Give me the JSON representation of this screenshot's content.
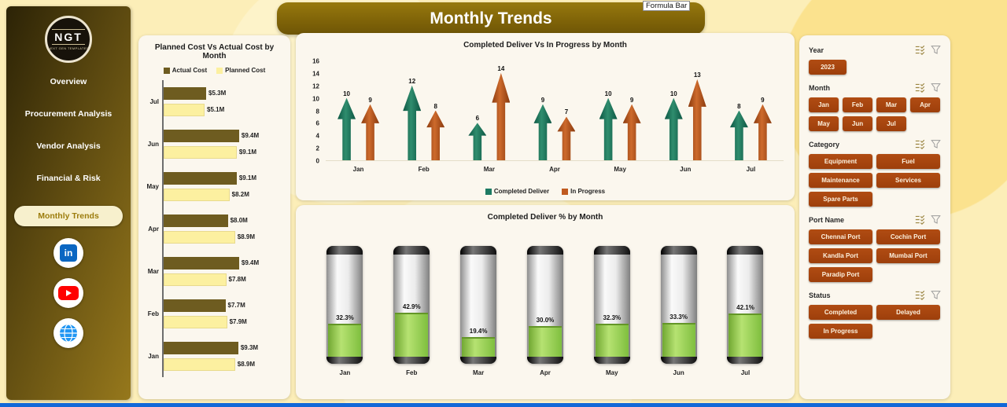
{
  "page": {
    "title": "Monthly Trends",
    "tooltip": "Formula Bar"
  },
  "colors": {
    "accent_rust": "#a8450f",
    "sidebar_dark": "#2c2306",
    "sidebar_gold": "#96781c",
    "banner_gold": "#806408",
    "actual_bar": "#6e5c20",
    "planned_bar": "#fcf0a0",
    "green_arrow": "#1d7a63",
    "orange_arrow": "#c05a1f",
    "gauge_fill": "#8cc63f",
    "bottom_strip": "#1168d8",
    "card_bg": "#fbf7ee"
  },
  "sidebar": {
    "logo": {
      "text": "NGT",
      "subtext": "NEXT GEN TEMPLATES"
    },
    "items": [
      {
        "label": "Overview",
        "active": false
      },
      {
        "label": "Procurement Analysis",
        "active": false
      },
      {
        "label": "Vendor Analysis",
        "active": false
      },
      {
        "label": "Financial & Risk",
        "active": false
      },
      {
        "label": "Monthly Trends",
        "active": true
      }
    ],
    "social": [
      {
        "name": "linkedin-icon"
      },
      {
        "name": "youtube-icon"
      },
      {
        "name": "globe-icon"
      }
    ]
  },
  "chart_data": [
    {
      "type": "bar",
      "orientation": "horizontal",
      "title": "Planned Cost Vs Actual Cost by Month",
      "categories": [
        "Jul",
        "Jun",
        "May",
        "Apr",
        "Mar",
        "Feb",
        "Jan"
      ],
      "series": [
        {
          "name": "Actual Cost",
          "color": "#6e5c20",
          "values": [
            5.3,
            9.4,
            9.1,
            8.0,
            9.4,
            7.7,
            9.3
          ],
          "labels": [
            "$5.3M",
            "$9.4M",
            "$9.1M",
            "$8.0M",
            "$9.4M",
            "$7.7M",
            "$9.3M"
          ]
        },
        {
          "name": "Planned Cost",
          "color": "#fcf0a0",
          "values": [
            5.1,
            9.1,
            8.2,
            8.9,
            7.8,
            7.9,
            8.9
          ],
          "labels": [
            "$5.1M",
            "$9.1M",
            "$8.2M",
            "$8.9M",
            "$7.8M",
            "$7.9M",
            "$8.9M"
          ]
        }
      ],
      "legend_position": "top"
    },
    {
      "type": "bar",
      "style": "arrow",
      "title": "Completed Deliver Vs In Progress by Month",
      "categories": [
        "Jan",
        "Feb",
        "Mar",
        "Apr",
        "May",
        "Jun",
        "Jul"
      ],
      "series": [
        {
          "name": "Completed Deliver",
          "color": "#1d7a63",
          "values": [
            10,
            12,
            6,
            9,
            10,
            10,
            8
          ]
        },
        {
          "name": "In Progress",
          "color": "#c05a1f",
          "values": [
            9,
            8,
            14,
            7,
            9,
            13,
            9
          ]
        }
      ],
      "ylim": [
        0,
        16
      ],
      "yticks": [
        0,
        2,
        4,
        6,
        8,
        10,
        12,
        14,
        16
      ],
      "legend_position": "bottom"
    },
    {
      "type": "bar",
      "style": "battery-gauge",
      "title": "Completed Deliver % by Month",
      "categories": [
        "Jan",
        "Feb",
        "Mar",
        "Apr",
        "May",
        "Jun",
        "Jul"
      ],
      "values": [
        32.3,
        42.9,
        19.4,
        30.0,
        32.3,
        33.3,
        42.1
      ],
      "labels": [
        "32.3%",
        "42.9%",
        "19.4%",
        "30.0%",
        "32.3%",
        "33.3%",
        "42.1%"
      ],
      "ylim": [
        0,
        100
      ]
    }
  ],
  "filters": {
    "groups": [
      {
        "key": "year",
        "label": "Year",
        "options": [
          "2023"
        ]
      },
      {
        "key": "month",
        "label": "Month",
        "options": [
          "Jan",
          "Feb",
          "Mar",
          "Apr",
          "May",
          "Jun",
          "Jul"
        ]
      },
      {
        "key": "category",
        "label": "Category",
        "options": [
          "Equipment",
          "Fuel",
          "Maintenance",
          "Services",
          "Spare Parts"
        ]
      },
      {
        "key": "port",
        "label": "Port Name",
        "options": [
          "Chennai Port",
          "Cochin Port",
          "Kandla Port",
          "Mumbai Port",
          "Paradip Port"
        ]
      },
      {
        "key": "status",
        "label": "Status",
        "options": [
          "Completed",
          "Delayed",
          "In Progress"
        ]
      }
    ]
  }
}
